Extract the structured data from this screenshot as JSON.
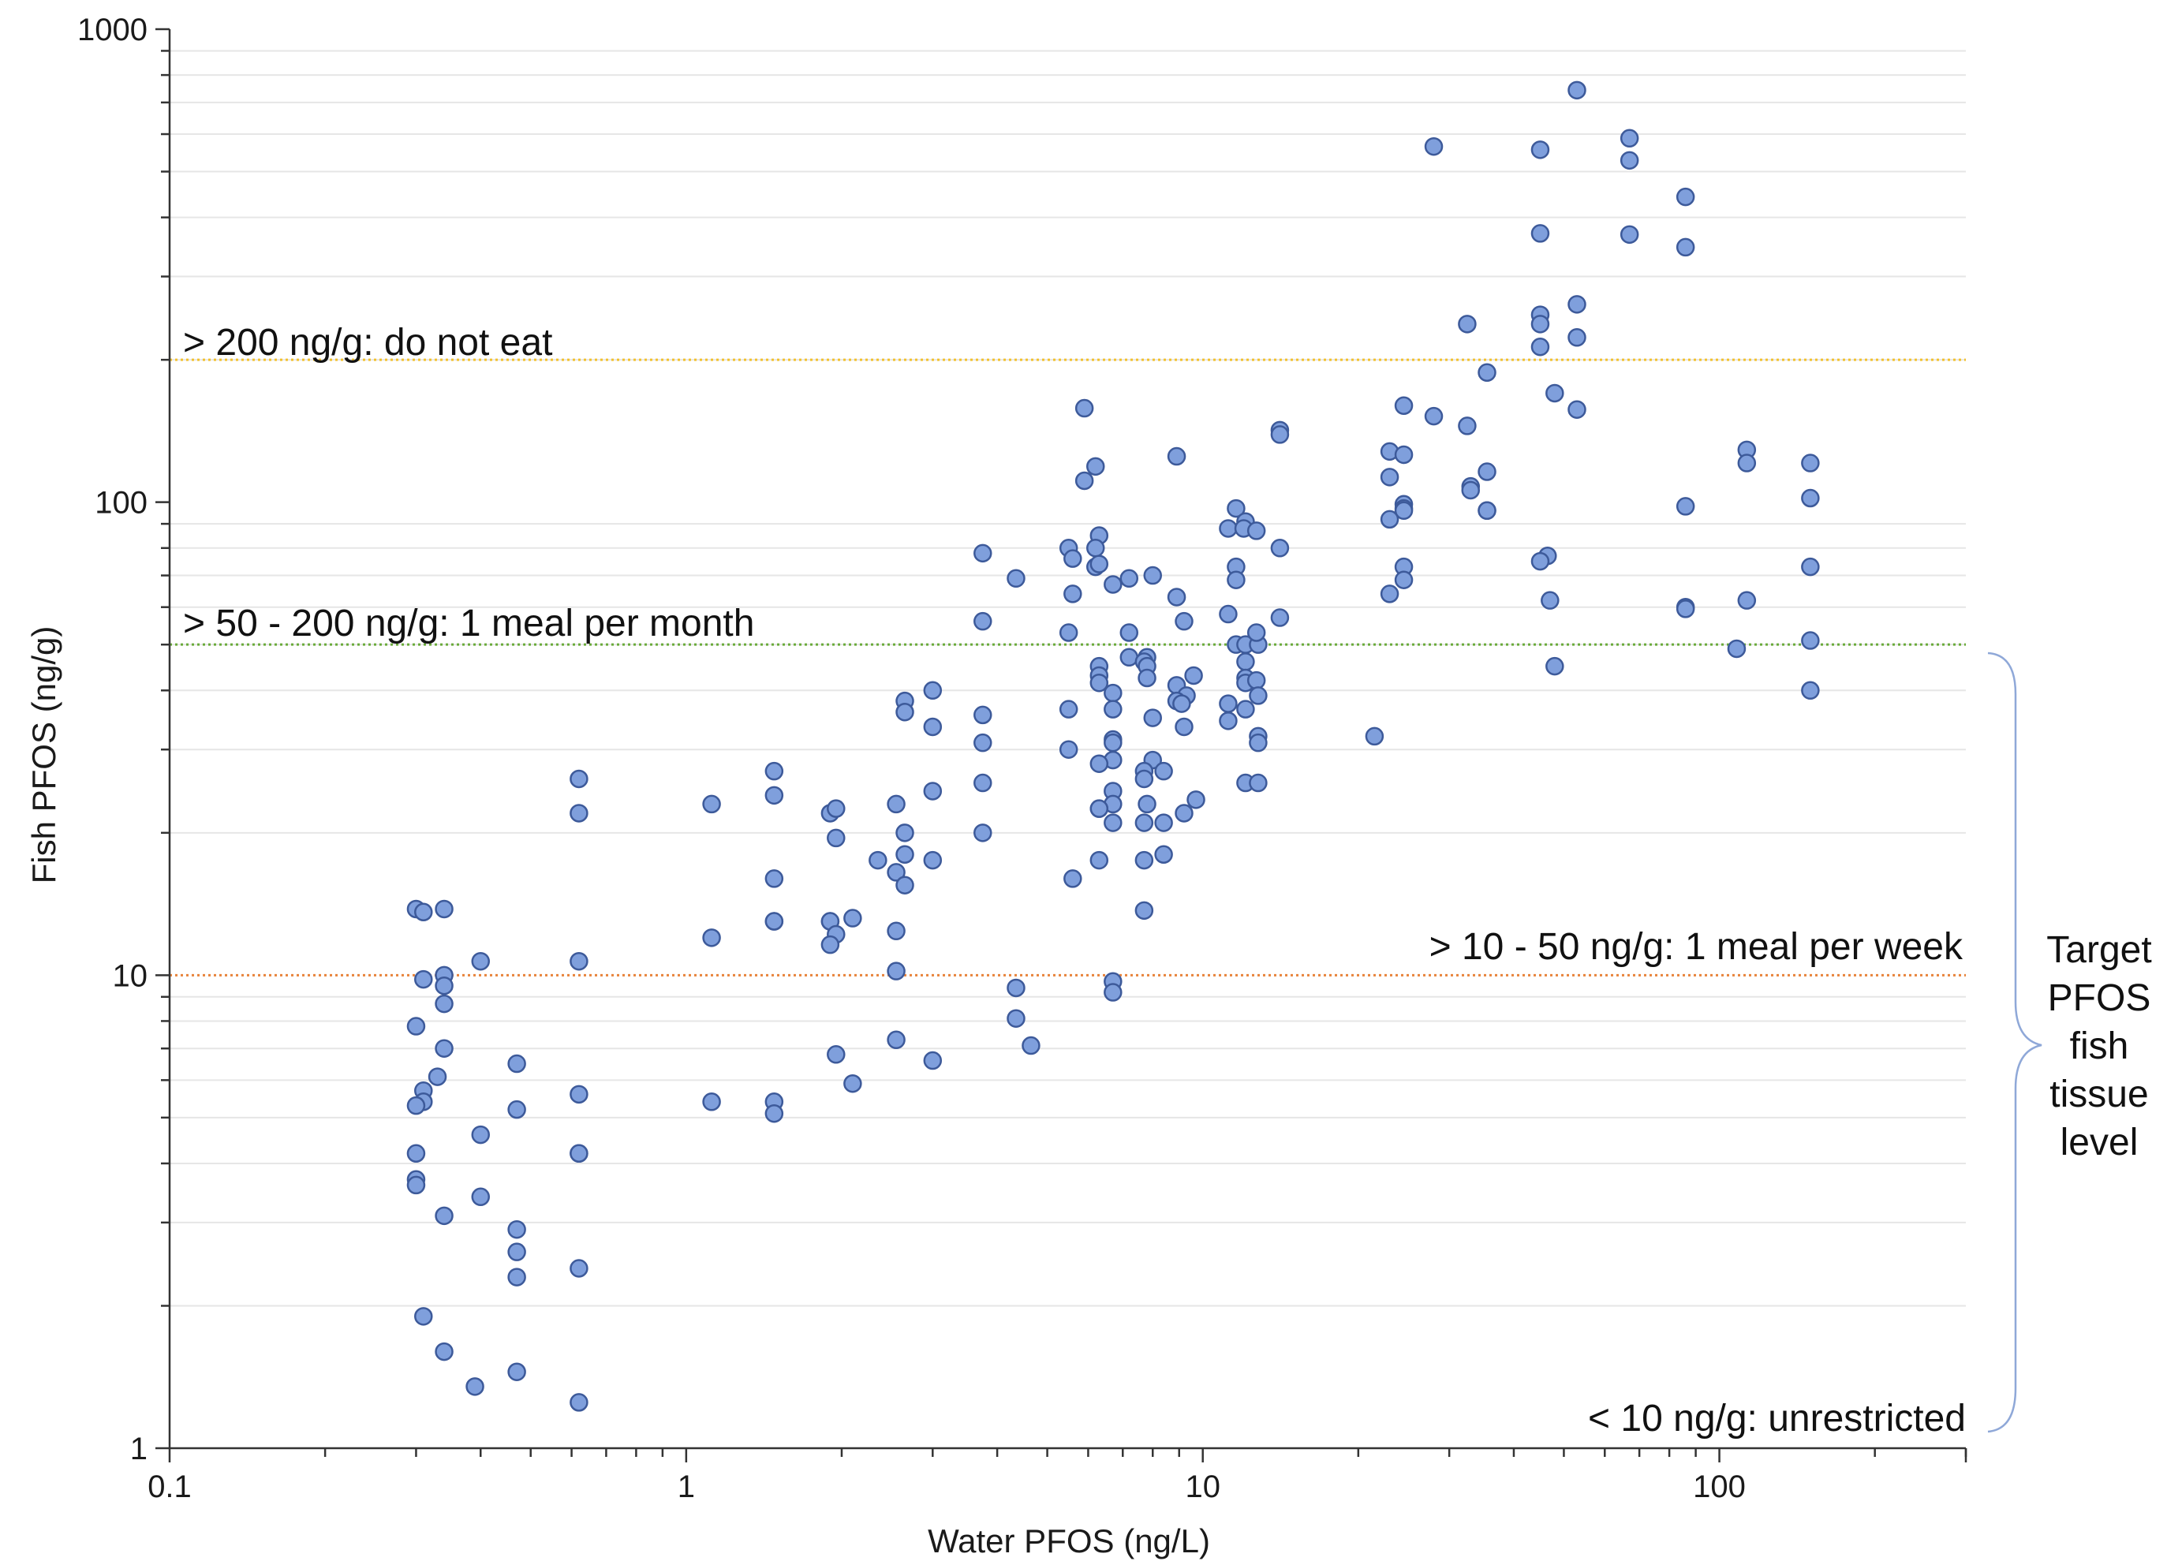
{
  "chart_data": {
    "type": "scatter",
    "xlabel": "Water PFOS (ng/L)",
    "ylabel": "Fish PFOS (ng/g)",
    "xscale": "log",
    "yscale": "log",
    "xlim": [
      0.1,
      300
    ],
    "ylim": [
      1,
      1000
    ],
    "x_ticks": [
      "0.1",
      "1",
      "10",
      "100"
    ],
    "y_ticks": [
      "1",
      "10",
      "100",
      "1000"
    ],
    "grid": "horizontal minor gridlines",
    "colors": {
      "marker_fill": "#7f9fdc",
      "marker_edge": "#3d5a9a",
      "line_200": "#f2c12e",
      "line_50": "#6aaa3a",
      "line_10": "#e8843c",
      "brace": "#8fa8d8"
    },
    "reference_lines": [
      {
        "y": 200,
        "label": "> 200 ng/g: do not eat",
        "color": "#f2c12e"
      },
      {
        "y": 50,
        "label": "> 50 - 200 ng/g: 1 meal per month",
        "color": "#6aaa3a"
      },
      {
        "y": 10,
        "label": "> 10 - 50 ng/g: 1 meal per week",
        "color": "#e8843c"
      }
    ],
    "bottom_note": "< 10 ng/g: unrestricted",
    "brace_label": [
      "Target",
      "PFOS",
      "fish",
      "tissue",
      "level"
    ],
    "points": [
      [
        0.3,
        13.8
      ],
      [
        0.31,
        13.6
      ],
      [
        0.34,
        13.8
      ],
      [
        0.31,
        9.8
      ],
      [
        0.34,
        10.0
      ],
      [
        0.34,
        9.5
      ],
      [
        0.34,
        8.7
      ],
      [
        0.34,
        7.0
      ],
      [
        0.3,
        7.8
      ],
      [
        0.33,
        6.1
      ],
      [
        0.31,
        5.7
      ],
      [
        0.31,
        5.4
      ],
      [
        0.3,
        5.3
      ],
      [
        0.3,
        4.2
      ],
      [
        0.3,
        3.7
      ],
      [
        0.3,
        3.6
      ],
      [
        0.34,
        3.1
      ],
      [
        0.31,
        1.9
      ],
      [
        0.34,
        1.6
      ],
      [
        0.39,
        1.35
      ],
      [
        0.4,
        10.7
      ],
      [
        0.4,
        4.6
      ],
      [
        0.4,
        3.4
      ],
      [
        0.47,
        6.5
      ],
      [
        0.47,
        5.2
      ],
      [
        0.47,
        2.9
      ],
      [
        0.47,
        2.6
      ],
      [
        0.47,
        2.3
      ],
      [
        0.47,
        1.45
      ],
      [
        0.62,
        26
      ],
      [
        0.62,
        22
      ],
      [
        0.62,
        10.7
      ],
      [
        0.62,
        5.6
      ],
      [
        0.62,
        4.2
      ],
      [
        0.62,
        4.2
      ],
      [
        0.62,
        2.4
      ],
      [
        0.62,
        1.25
      ],
      [
        1.12,
        23
      ],
      [
        1.12,
        12
      ],
      [
        1.12,
        5.4
      ],
      [
        1.48,
        27
      ],
      [
        1.48,
        24
      ],
      [
        1.48,
        16
      ],
      [
        1.48,
        13
      ],
      [
        1.48,
        13
      ],
      [
        1.48,
        5.4
      ],
      [
        1.48,
        5.1
      ],
      [
        1.9,
        22
      ],
      [
        1.95,
        22.5
      ],
      [
        1.95,
        19.5
      ],
      [
        1.9,
        13
      ],
      [
        1.9,
        13
      ],
      [
        1.95,
        12.2
      ],
      [
        1.9,
        11.6
      ],
      [
        2.1,
        13.2
      ],
      [
        1.95,
        6.8
      ],
      [
        2.1,
        5.9
      ],
      [
        2.35,
        17.5
      ],
      [
        2.55,
        23
      ],
      [
        2.65,
        38
      ],
      [
        2.65,
        36
      ],
      [
        2.65,
        20
      ],
      [
        2.65,
        18
      ],
      [
        2.55,
        16.5
      ],
      [
        2.65,
        15.5
      ],
      [
        2.55,
        12.4
      ],
      [
        2.55,
        10.2
      ],
      [
        2.55,
        7.3
      ],
      [
        3.0,
        40
      ],
      [
        3.0,
        33.5
      ],
      [
        3.0,
        24.5
      ],
      [
        3.0,
        17.5
      ],
      [
        3.0,
        6.6
      ],
      [
        3.75,
        78
      ],
      [
        3.75,
        56
      ],
      [
        3.75,
        35.5
      ],
      [
        3.75,
        31
      ],
      [
        3.75,
        25.5
      ],
      [
        3.75,
        20
      ],
      [
        4.35,
        69
      ],
      [
        4.35,
        9.4
      ],
      [
        4.35,
        8.1
      ],
      [
        4.65,
        7.1
      ],
      [
        5.5,
        80
      ],
      [
        5.6,
        76
      ],
      [
        5.6,
        64
      ],
      [
        5.5,
        53
      ],
      [
        5.5,
        36.5
      ],
      [
        5.5,
        30
      ],
      [
        5.6,
        16
      ],
      [
        5.9,
        158
      ],
      [
        6.2,
        119
      ],
      [
        5.9,
        111
      ],
      [
        6.3,
        85
      ],
      [
        6.2,
        80
      ],
      [
        6.2,
        73
      ],
      [
        6.3,
        74
      ],
      [
        6.7,
        67
      ],
      [
        6.3,
        45
      ],
      [
        6.3,
        43
      ],
      [
        6.3,
        41.5
      ],
      [
        6.7,
        39.5
      ],
      [
        6.7,
        36.5
      ],
      [
        6.7,
        31.5
      ],
      [
        6.7,
        31
      ],
      [
        6.7,
        28.5
      ],
      [
        6.3,
        28
      ],
      [
        6.7,
        24.5
      ],
      [
        6.7,
        23
      ],
      [
        6.3,
        22.5
      ],
      [
        6.3,
        22.5
      ],
      [
        6.7,
        21
      ],
      [
        6.3,
        17.5
      ],
      [
        6.7,
        9.7
      ],
      [
        6.7,
        9.2
      ],
      [
        7.2,
        69
      ],
      [
        7.2,
        53
      ],
      [
        7.2,
        47
      ],
      [
        7.8,
        47
      ],
      [
        7.7,
        46
      ],
      [
        7.8,
        45
      ],
      [
        7.8,
        42.5
      ],
      [
        8.0,
        70
      ],
      [
        8.0,
        35
      ],
      [
        8.0,
        28.5
      ],
      [
        7.7,
        27
      ],
      [
        7.7,
        26
      ],
      [
        8.4,
        27
      ],
      [
        7.8,
        23
      ],
      [
        7.7,
        21
      ],
      [
        8.4,
        21
      ],
      [
        8.4,
        18
      ],
      [
        7.7,
        17.5
      ],
      [
        7.7,
        13.7
      ],
      [
        8.9,
        125
      ],
      [
        8.9,
        63
      ],
      [
        9.2,
        56
      ],
      [
        9.6,
        43
      ],
      [
        8.9,
        41
      ],
      [
        9.3,
        39
      ],
      [
        8.9,
        38
      ],
      [
        9.1,
        37.5
      ],
      [
        9.2,
        33.5
      ],
      [
        9.7,
        23.5
      ],
      [
        9.2,
        22
      ],
      [
        11.6,
        97
      ],
      [
        11.2,
        88
      ],
      [
        12.1,
        91
      ],
      [
        12.0,
        88
      ],
      [
        12.7,
        87
      ],
      [
        11.6,
        73
      ],
      [
        11.6,
        68.5
      ],
      [
        11.2,
        58
      ],
      [
        11.6,
        50
      ],
      [
        12.1,
        50
      ],
      [
        12.8,
        50
      ],
      [
        12.7,
        53
      ],
      [
        12.1,
        46
      ],
      [
        12.1,
        42.5
      ],
      [
        12.1,
        41.5
      ],
      [
        12.7,
        42
      ],
      [
        12.8,
        39
      ],
      [
        11.2,
        37.5
      ],
      [
        12.1,
        36.5
      ],
      [
        11.2,
        34.5
      ],
      [
        12.8,
        32
      ],
      [
        12.8,
        31
      ],
      [
        12.1,
        25.5
      ],
      [
        12.8,
        25.5
      ],
      [
        14.1,
        142
      ],
      [
        14.1,
        139
      ],
      [
        14.1,
        80
      ],
      [
        14.1,
        57
      ],
      [
        21.5,
        32
      ],
      [
        23,
        128
      ],
      [
        23,
        113
      ],
      [
        23,
        92
      ],
      [
        23,
        64
      ],
      [
        24.5,
        160
      ],
      [
        24.5,
        126
      ],
      [
        24.5,
        99
      ],
      [
        24.5,
        97
      ],
      [
        24.5,
        96
      ],
      [
        24.5,
        73
      ],
      [
        24.5,
        68.5
      ],
      [
        28,
        565
      ],
      [
        28,
        152
      ],
      [
        32.5,
        238
      ],
      [
        32.5,
        145
      ],
      [
        33,
        108
      ],
      [
        33,
        106
      ],
      [
        35.5,
        188
      ],
      [
        35.5,
        116
      ],
      [
        35.5,
        96
      ],
      [
        35.5,
        96
      ],
      [
        45,
        556
      ],
      [
        45,
        370
      ],
      [
        45,
        249
      ],
      [
        45,
        238
      ],
      [
        45,
        213
      ],
      [
        46.5,
        77
      ],
      [
        45,
        75
      ],
      [
        47,
        62
      ],
      [
        48,
        170
      ],
      [
        48,
        45
      ],
      [
        53,
        743
      ],
      [
        53,
        262
      ],
      [
        53,
        223
      ],
      [
        53,
        157
      ],
      [
        67,
        588
      ],
      [
        67,
        528
      ],
      [
        67,
        368
      ],
      [
        86,
        442
      ],
      [
        86,
        346
      ],
      [
        86,
        98
      ],
      [
        86,
        60
      ],
      [
        86,
        59.5
      ],
      [
        108,
        49
      ],
      [
        113,
        129
      ],
      [
        113,
        121
      ],
      [
        113,
        62
      ],
      [
        150,
        121
      ],
      [
        150,
        102
      ],
      [
        150,
        73
      ],
      [
        150,
        51
      ],
      [
        150,
        40
      ]
    ]
  }
}
